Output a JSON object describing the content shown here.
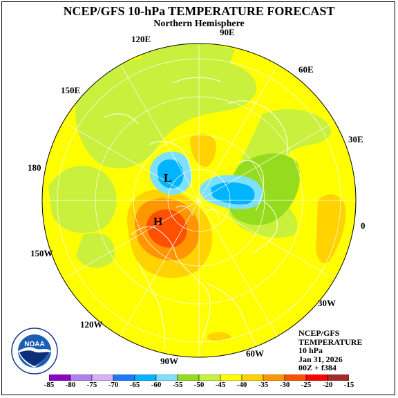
{
  "title": "NCEP/GFS 10-hPa TEMPERATURE FORECAST",
  "subtitle": "Northern Hemisphere",
  "longitude_labels": {
    "e90": "90E",
    "e120": "120E",
    "e60": "60E",
    "e150": "150E",
    "e30": "30E",
    "d180": "180",
    "zero": "0",
    "w150": "150W",
    "w30": "30W",
    "w120": "120W",
    "w90": "90W",
    "w60": "60W"
  },
  "info": {
    "line1": "NCEP/GFS",
    "line2": "TEMPERATURE",
    "line3": "10 hPa",
    "line4": "Jan 31, 2026",
    "line5": "00Z + f384"
  },
  "logo_text": "NOAA",
  "logo_ring_text": "NATIONAL OCEANIC AND ATMOSPHERIC ADMINISTRATION · U.S. DEPARTMENT OF COMMERCE",
  "features": {
    "low_label": "L",
    "high_label": "H"
  },
  "legend": {
    "ticks": [
      "-85",
      "-80",
      "-75",
      "-70",
      "-65",
      "-60",
      "-55",
      "-50",
      "-45",
      "-40",
      "-35",
      "-30",
      "-25",
      "-20",
      "-15"
    ],
    "colors": [
      "#8b00c8",
      "#b07ff0",
      "#d8b0f8",
      "#1e78ff",
      "#00b4ff",
      "#7ee0ff",
      "#96dc1e",
      "#c8f03c",
      "#ffff00",
      "#ffd200",
      "#ff9600",
      "#ff5000",
      "#ff0000",
      "#a52a2a"
    ]
  },
  "colors": {
    "background_field": "#ffff00",
    "green": "#c8f03c",
    "gold": "#ffd200",
    "orange": "#ff9600",
    "red": "#ff5000",
    "cyan": "#7ee0ff",
    "blue": "#00b4ff",
    "deep_blue": "#1e78ff"
  }
}
